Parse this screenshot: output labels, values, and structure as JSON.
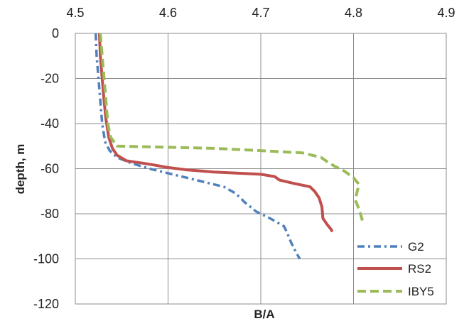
{
  "chart_data": {
    "type": "line",
    "title": "",
    "xlabel": "B/A",
    "ylabel": "depth, m",
    "xlim": [
      4.5,
      4.9
    ],
    "ylim": [
      -120,
      0
    ],
    "x_ticks": [
      "4.5",
      "4.6",
      "4.7",
      "4.8",
      "4.9"
    ],
    "x_tick_values": [
      4.5,
      4.6,
      4.7,
      4.8,
      4.9
    ],
    "y_ticks": [
      "0",
      "-20",
      "-40",
      "-60",
      "-80",
      "-100",
      "-120"
    ],
    "y_tick_values": [
      0,
      -20,
      -40,
      -60,
      -80,
      -100,
      -120
    ],
    "x_axis_position": "top",
    "grid": true,
    "legend_position": "bottom-right",
    "series": [
      {
        "name": "G2",
        "color": "#4f81bd",
        "dash": "dash-dot",
        "points": [
          [
            4.522,
            0
          ],
          [
            4.523,
            -10
          ],
          [
            4.525,
            -20
          ],
          [
            4.527,
            -30
          ],
          [
            4.529,
            -40
          ],
          [
            4.532,
            -48
          ],
          [
            4.537,
            -52
          ],
          [
            4.545,
            -55
          ],
          [
            4.56,
            -57.5
          ],
          [
            4.58,
            -60
          ],
          [
            4.6,
            -62
          ],
          [
            4.62,
            -64
          ],
          [
            4.64,
            -66
          ],
          [
            4.66,
            -68
          ],
          [
            4.673,
            -71
          ],
          [
            4.683,
            -75
          ],
          [
            4.695,
            -79
          ],
          [
            4.71,
            -82
          ],
          [
            4.725,
            -85.5
          ],
          [
            4.728,
            -88
          ],
          [
            4.733,
            -93
          ],
          [
            4.738,
            -97
          ],
          [
            4.742,
            -100
          ]
        ]
      },
      {
        "name": "RS2",
        "color": "#c0504d",
        "dash": "solid",
        "points": [
          [
            4.526,
            0
          ],
          [
            4.527,
            -10
          ],
          [
            4.529,
            -20
          ],
          [
            4.531,
            -30
          ],
          [
            4.533,
            -38
          ],
          [
            4.536,
            -46
          ],
          [
            4.54,
            -51
          ],
          [
            4.545,
            -54
          ],
          [
            4.555,
            -56.5
          ],
          [
            4.58,
            -58
          ],
          [
            4.6,
            -59.5
          ],
          [
            4.62,
            -60.5
          ],
          [
            4.65,
            -61.5
          ],
          [
            4.7,
            -62.5
          ],
          [
            4.715,
            -63.5
          ],
          [
            4.72,
            -65
          ],
          [
            4.735,
            -66.5
          ],
          [
            4.753,
            -68
          ],
          [
            4.758,
            -70
          ],
          [
            4.763,
            -73
          ],
          [
            4.766,
            -77
          ],
          [
            4.767,
            -82
          ],
          [
            4.772,
            -85
          ],
          [
            4.776,
            -87
          ],
          [
            4.777,
            -88
          ]
        ]
      },
      {
        "name": "IBY5",
        "color": "#9bbb59",
        "dash": "dashed",
        "points": [
          [
            4.527,
            0
          ],
          [
            4.529,
            -10
          ],
          [
            4.531,
            -20
          ],
          [
            4.533,
            -30
          ],
          [
            4.535,
            -40
          ],
          [
            4.538,
            -46
          ],
          [
            4.545,
            -50
          ],
          [
            4.6,
            -50.5
          ],
          [
            4.65,
            -51
          ],
          [
            4.7,
            -52
          ],
          [
            4.745,
            -53
          ],
          [
            4.765,
            -55
          ],
          [
            4.772,
            -57
          ],
          [
            4.78,
            -59
          ],
          [
            4.79,
            -61
          ],
          [
            4.8,
            -64
          ],
          [
            4.806,
            -67
          ],
          [
            4.804,
            -70
          ],
          [
            4.802,
            -74
          ],
          [
            4.806,
            -78
          ],
          [
            4.809,
            -82
          ],
          [
            4.81,
            -84
          ]
        ]
      }
    ]
  }
}
